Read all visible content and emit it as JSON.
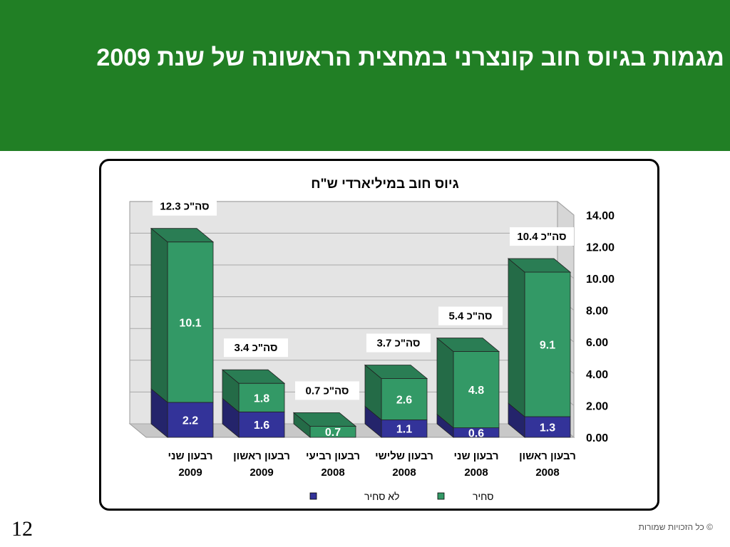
{
  "slide": {
    "title": "מגמות בגיוס חוב קונצרני במחצית הראשונה של שנת 2009",
    "page_number": "12",
    "copyright": "© כל הזכויות שמורות"
  },
  "colors": {
    "header": "#217f25",
    "traded": "#339966",
    "non_traded": "#333399"
  },
  "chart_data": {
    "type": "bar",
    "stacked": true,
    "title": "גיוס חוב במיליארדי ש\"ח",
    "categories": [
      [
        "רבעון שני",
        "2009"
      ],
      [
        "רבעון ראשון",
        "2009"
      ],
      [
        "רבעון רביעי",
        "2008"
      ],
      [
        "רבעון שלישי",
        "2008"
      ],
      [
        "רבעון שני",
        "2008"
      ],
      [
        "רבעון ראשון",
        "2008"
      ]
    ],
    "series": [
      {
        "name": "לא סחיר",
        "values": [
          2.2,
          1.6,
          0,
          1.1,
          0.6,
          1.3
        ],
        "color": "#333399"
      },
      {
        "name": "סחיר",
        "values": [
          10.1,
          1.8,
          0.7,
          2.6,
          4.8,
          9.1
        ],
        "color": "#339966"
      }
    ],
    "segment_labels": [
      [
        "2.2",
        "1.6",
        "",
        "1.1",
        "0.6",
        "1.3"
      ],
      [
        "10.1",
        "1.8",
        "0.7",
        "2.6",
        "4.8",
        "9.1"
      ]
    ],
    "total_labels": [
      "סה\"כ 12.3",
      "סה\"כ 3.4",
      "סה\"כ 0.7",
      "סה\"כ 3.7",
      "סה\"כ 5.4",
      "סה\"כ 10.4"
    ],
    "y_ticks": [
      "0.00",
      "2.00",
      "4.00",
      "6.00",
      "8.00",
      "10.00",
      "12.00",
      "14.00"
    ],
    "ylim": [
      0,
      14
    ],
    "y_axis_side": "right",
    "grid": true,
    "legend_position": "bottom"
  }
}
